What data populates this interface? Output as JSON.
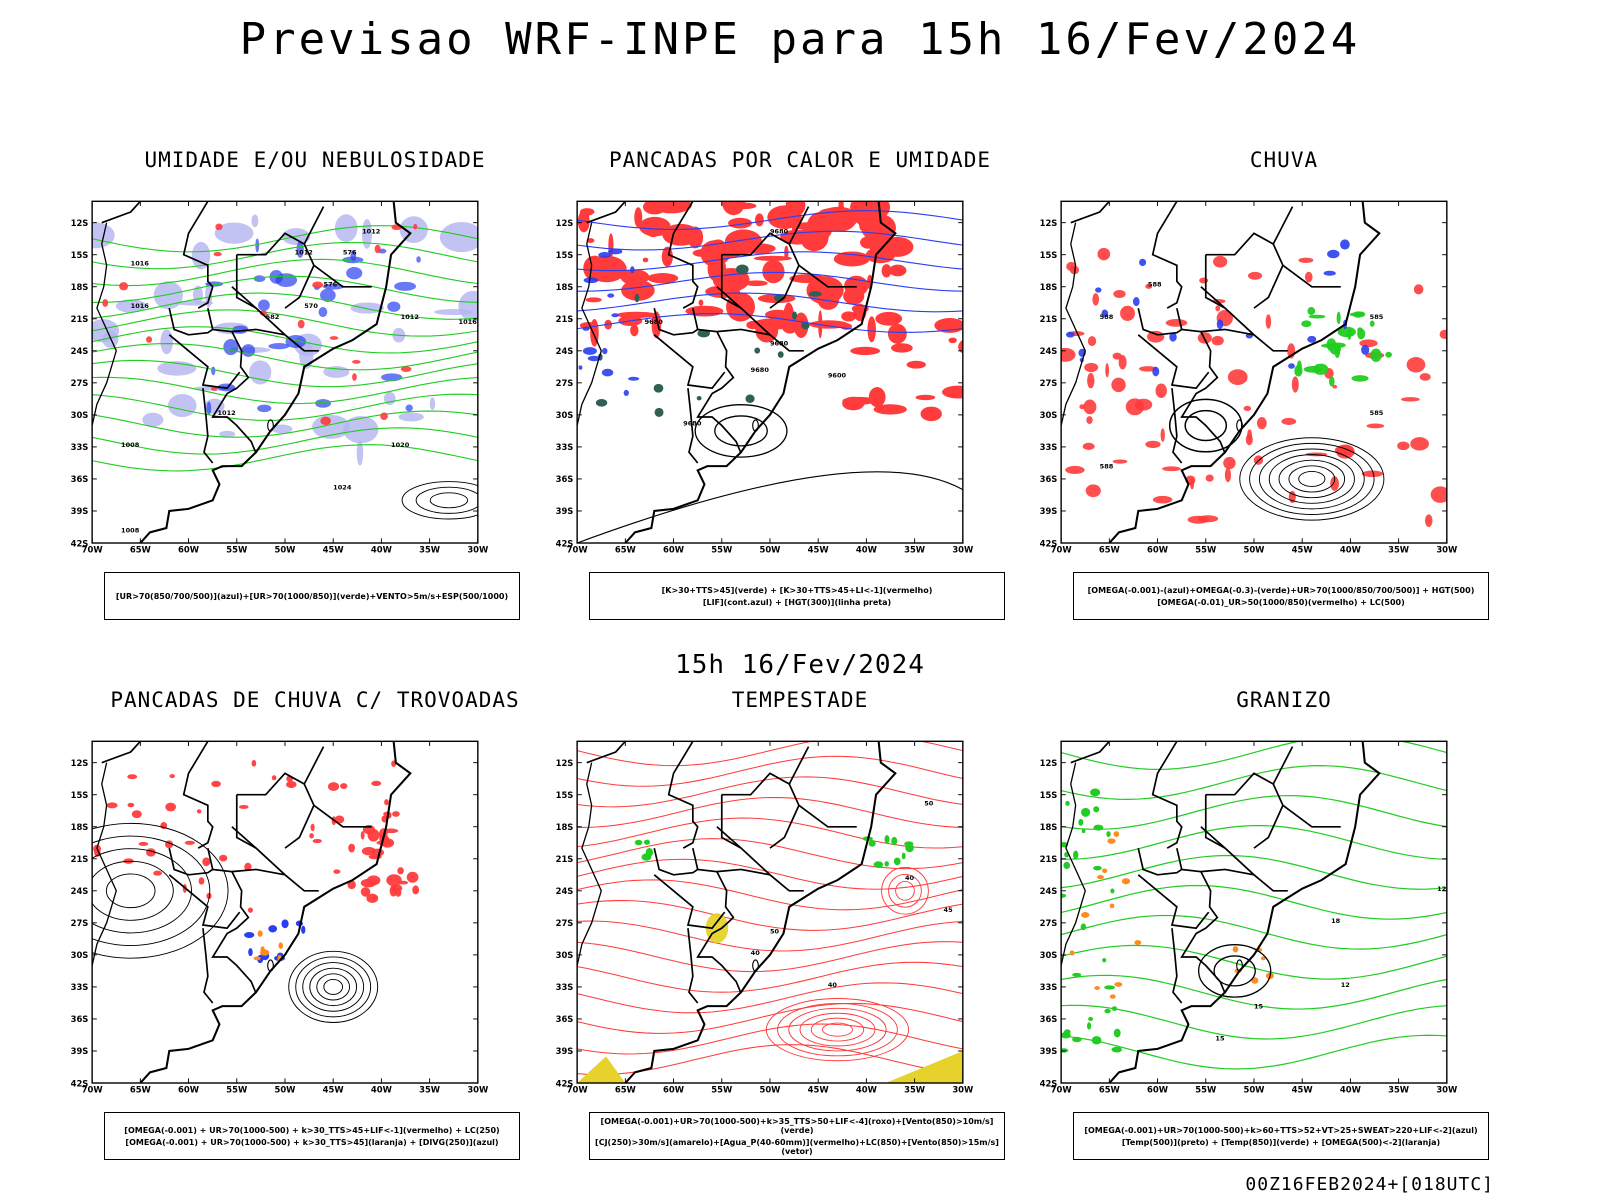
{
  "title": "Previsao WRF-INPE  para 15h 16/Fev/2024",
  "subtitle": "15h 16/Fev/2024",
  "footer": "00Z16FEB2024+[018UTC]",
  "axes": {
    "lat_labels": [
      "12S",
      "15S",
      "18S",
      "21S",
      "24S",
      "27S",
      "30S",
      "33S",
      "36S",
      "39S",
      "42S"
    ],
    "lon_labels": [
      "70W",
      "65W",
      "60W",
      "55W",
      "50W",
      "45W",
      "40W",
      "35W",
      "30W"
    ]
  },
  "colors": {
    "red": "#ff3b3b",
    "green": "#22cc22",
    "blue": "#2a3ff0",
    "lavender": "#b4b4f0",
    "orange": "#ff8a1e",
    "yellow": "#e6d22a",
    "darkteal": "#2f5f55",
    "purple": "#8a2be2"
  },
  "panels": [
    {
      "title": "UMIDADE E/OU NEBULOSIDADE",
      "legend": [
        "[UR>70(850/700/500)](azul)+[UR>70(1000/850)](verde)+VENTO>5m/s+ESP(500/1000)"
      ],
      "labels": [
        "1012",
        "1012",
        "1012",
        "1016",
        "1016",
        "1016",
        "1020",
        "1024",
        "1008",
        "1008",
        "1012",
        "576",
        "576",
        "570",
        "564",
        "582"
      ],
      "icon": "humidity-map"
    },
    {
      "title": "PANCADAS POR CALOR E UMIDADE",
      "legend": [
        "[K>30+TTS>45](verde) + [K>30+TTS>45+LI<-1](vermelho)",
        "[LIF](cont.azul) + [HGT(300)](linha preta)"
      ],
      "labels": [
        "9680",
        "9680",
        "9680",
        "9680",
        "9600",
        "9680"
      ],
      "icon": "heat-showers-map"
    },
    {
      "title": "CHUVA",
      "legend": [
        "[OMEGA(-0.001)-(azul)+OMEGA(-0.3)-(verde)+UR>70(1000/850/700/500)] + HGT(500)",
        "[OMEGA(-0.01)_UR>50(1000/850)(vermelho) + LC(500)"
      ],
      "labels": [
        "588",
        "588",
        "585",
        "585",
        "588"
      ],
      "icon": "rain-map"
    },
    {
      "title": "PANCADAS DE CHUVA C/ TROVOADAS",
      "legend": [
        "[OMEGA(-0.001) + UR>70(1000-500) + k>30_TTS>45+LIF<-1](vermelho) + LC(250)",
        "[OMEGA(-0.001) + UR>70(1000-500) + k>30_TTS>45](laranja) + [DIVG(250)](azul)"
      ],
      "labels": [],
      "icon": "thunderstorm-map"
    },
    {
      "title": "TEMPESTADE",
      "legend": [
        "[OMEGA(-0.001)+UR>70(1000-500)+k>35_TTS>50+LIF<-4](roxo)+[Vento(850)>10m/s](verde)",
        "[CJ(250)>30m/s](amarelo)+[Agua_P(40-60mm)](vermelho)+LC(850)+[Vento(850)>15m/s](vetor)"
      ],
      "labels": [
        "50",
        "40",
        "45",
        "40",
        "50",
        "40"
      ],
      "icon": "storm-map"
    },
    {
      "title": "GRANIZO",
      "legend": [
        "[OMEGA(-0.001)+UR>70(1000-500)+k>60+TTS>52+VT>25+SWEAT>220+LIF<-2](azul)",
        "[Temp(500)](preto) + [Temp(850)](verde) + [OMEGA(500)<-2](laranja)"
      ],
      "labels": [
        "12",
        "15",
        "18",
        "12",
        "15"
      ],
      "icon": "hail-map"
    }
  ]
}
